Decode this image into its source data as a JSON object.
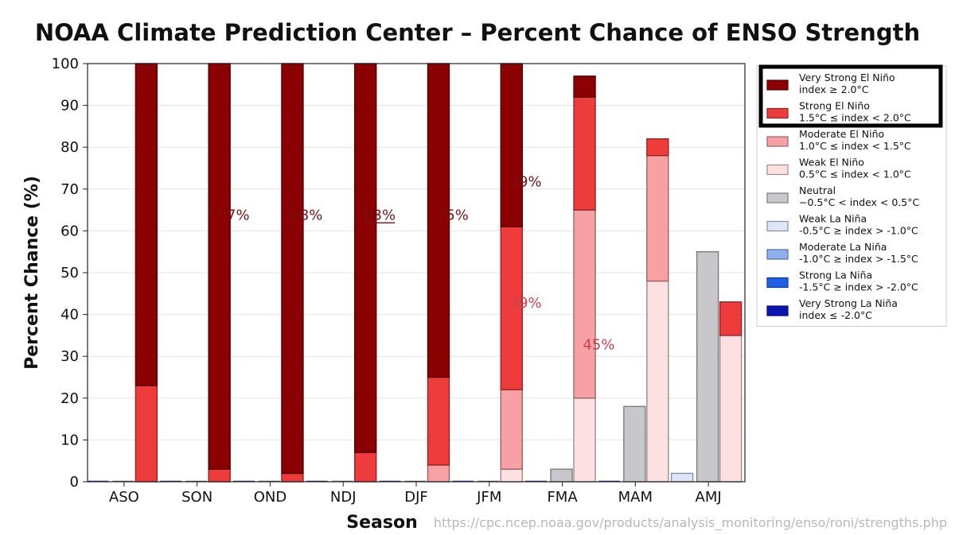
{
  "chart_data": {
    "type": "bar",
    "subtype": "stacked-grouped",
    "title": "NOAA Climate Prediction Center – Percent Chance of ENSO Strength",
    "xlabel": "Season",
    "ylabel": "Percent Chance (%)",
    "ylim": [
      0,
      100
    ],
    "yticks": [
      0,
      10,
      20,
      30,
      40,
      50,
      60,
      70,
      80,
      90,
      100
    ],
    "grid": "horizontal",
    "categories": [
      "ASO",
      "SON",
      "OND",
      "NDJ",
      "DJF",
      "JFM",
      "FMA",
      "MAM",
      "AMJ"
    ],
    "groups": [
      {
        "name": "La Niña",
        "offset": "left"
      },
      {
        "name": "Neutral",
        "offset": "center"
      },
      {
        "name": "El Niño",
        "offset": "right"
      }
    ],
    "series": [
      {
        "name": "Very Strong El Niño",
        "range": "index ≥ 2.0°C",
        "group": "El Niño",
        "color": "#8b0000",
        "values": [
          77,
          97,
          98,
          93,
          75,
          39,
          5,
          0,
          0
        ]
      },
      {
        "name": "Strong El Niño",
        "range": "1.5°C ≤ index < 2.0°C",
        "group": "El Niño",
        "color": "#ee3b3b",
        "values": [
          23,
          3,
          2,
          7,
          21,
          39,
          27,
          4,
          8
        ]
      },
      {
        "name": "Moderate El Niño",
        "range": "1.0°C ≤ index < 1.5°C",
        "group": "El Niño",
        "color": "#f7a1a5",
        "values": [
          0,
          0,
          0,
          0,
          4,
          19,
          45,
          30,
          0
        ]
      },
      {
        "name": "Weak El Niño",
        "range": "0.5°C ≤ index < 1.0°C",
        "group": "El Niño",
        "color": "#fde0e2",
        "values": [
          0,
          0,
          0,
          0,
          0,
          3,
          20,
          48,
          35
        ]
      },
      {
        "name": "Neutral",
        "range": "−0.5°C < index < 0.5°C",
        "group": "Neutral",
        "color": "#c8c8cc",
        "values": [
          0,
          0,
          0,
          0,
          0,
          0,
          3,
          18,
          55
        ]
      },
      {
        "name": "Weak La Niña",
        "range": "-0.5°C ≥ index > -1.0°C",
        "group": "La Niña",
        "color": "#dde6fb",
        "values": [
          0,
          0,
          0,
          0,
          0,
          0,
          0,
          0,
          2
        ]
      },
      {
        "name": "Moderate La Niña",
        "range": "-1.0°C ≥ index > -1.5°C",
        "group": "La Niña",
        "color": "#8fb0f0",
        "values": [
          0,
          0,
          0,
          0,
          0,
          0,
          0,
          0,
          0
        ]
      },
      {
        "name": "Strong La Niña",
        "range": "-1.5°C ≥ index > -2.0°C",
        "group": "La Niña",
        "color": "#1d5fe6",
        "values": [
          0,
          0,
          0,
          0,
          0,
          0,
          0,
          0,
          0
        ]
      },
      {
        "name": "Very Strong La Niña",
        "range": "index ≤ -2.0°C",
        "group": "La Niña",
        "color": "#0a14b0",
        "values": [
          0,
          0,
          0,
          0,
          0,
          0,
          0,
          0,
          0
        ]
      }
    ],
    "legend": {
      "placement": "right",
      "highlighted": [
        "Very Strong El Niño",
        "Strong El Niño"
      ]
    },
    "annotations": [
      {
        "text": "97%",
        "category": "SON",
        "y": 64,
        "color": "#7a1010",
        "underline": false
      },
      {
        "text": "98%",
        "category": "OND",
        "y": 64,
        "color": "#7a1010",
        "underline": false
      },
      {
        "text": "93%",
        "category": "NDJ",
        "y": 64,
        "color": "#7a1010",
        "underline": true
      },
      {
        "text": "75%",
        "category": "DJF",
        "y": 64,
        "color": "#7a1010",
        "underline": false
      },
      {
        "text": "39%",
        "category": "JFM",
        "y": 72,
        "color": "#7a1010",
        "underline": false
      },
      {
        "text": "39%",
        "category": "JFM",
        "y": 43,
        "color": "#d0404c",
        "underline": false
      },
      {
        "text": "45%",
        "category": "FMA",
        "y": 33,
        "color": "#d0404c",
        "underline": false
      }
    ]
  },
  "source_url": "https://cpc.ncep.noaa.gov/products/analysis_monitoring/enso/roni/strengths.php"
}
